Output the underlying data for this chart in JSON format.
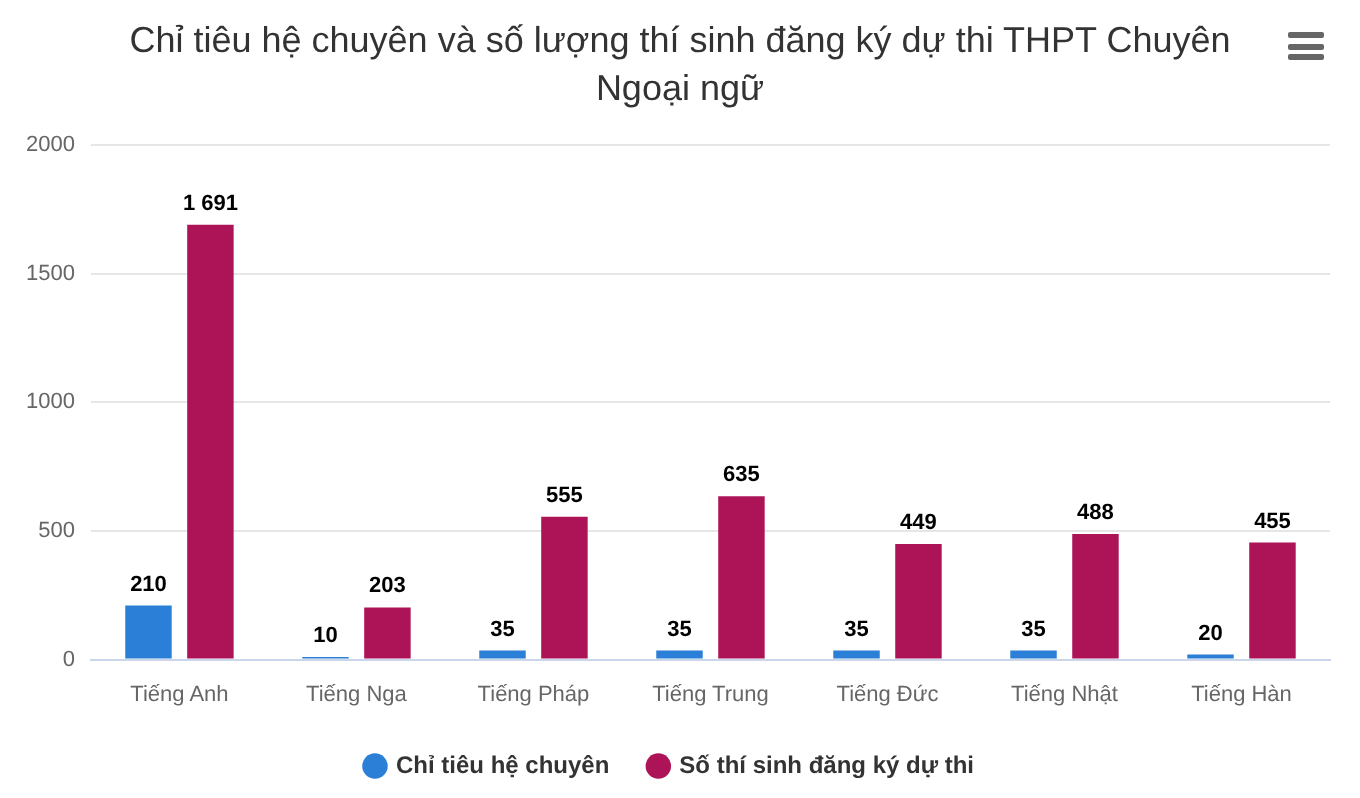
{
  "chart_data": {
    "type": "bar",
    "title": "Chỉ tiêu hệ chuyên và số lượng thí sinh đăng ký dự thi THPT Chuyên Ngoại ngữ",
    "categories": [
      "Tiếng Anh",
      "Tiếng Nga",
      "Tiếng Pháp",
      "Tiếng Trung",
      "Tiếng Đức",
      "Tiếng Nhật",
      "Tiếng Hàn"
    ],
    "series": [
      {
        "name": "Chỉ tiêu hệ chuyên",
        "color": "#2b7fd6",
        "values": [
          210,
          10,
          35,
          35,
          35,
          35,
          20
        ],
        "value_labels": [
          "210",
          "10",
          "35",
          "35",
          "35",
          "35",
          "20"
        ]
      },
      {
        "name": "Số thí sinh đăng ký dự thi",
        "color": "#ad1457",
        "values": [
          1691,
          203,
          555,
          635,
          449,
          488,
          455
        ],
        "value_labels": [
          "1 691",
          "203",
          "555",
          "635",
          "449",
          "488",
          "455"
        ]
      }
    ],
    "ylim": [
      0,
      2000
    ],
    "yticks": [
      0,
      500,
      1000,
      1500,
      2000
    ],
    "grid": "y",
    "legend": "bottom"
  }
}
